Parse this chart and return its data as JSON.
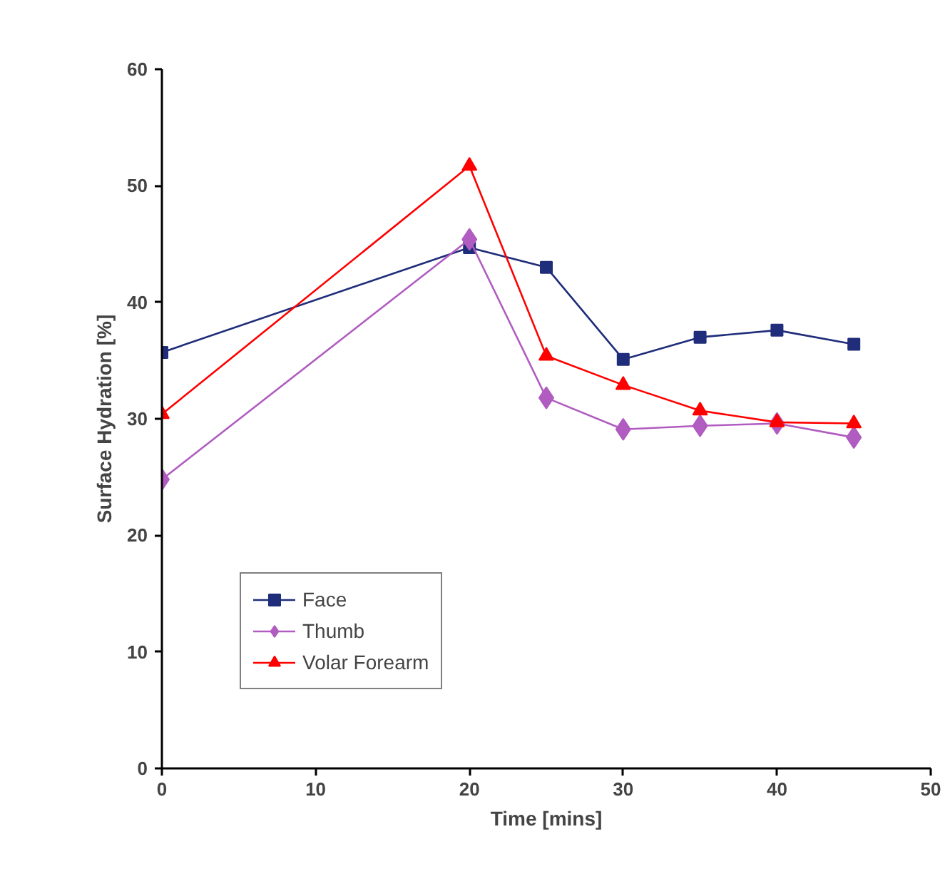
{
  "chart_data": {
    "type": "line",
    "xlabel": "Time [mins]",
    "ylabel": "Surface Hydration [%]",
    "x": [
      0,
      20,
      25,
      30,
      35,
      40,
      45
    ],
    "series": [
      {
        "name": "Face",
        "color": "#1f2d7a",
        "marker": "square",
        "values": [
          35.7,
          44.7,
          43.0,
          35.1,
          37.0,
          37.6,
          36.4
        ]
      },
      {
        "name": "Thumb",
        "color": "#b05cc0",
        "marker": "diamond",
        "values": [
          24.8,
          45.4,
          31.8,
          29.1,
          29.4,
          29.6,
          28.4
        ]
      },
      {
        "name": "Volar Forearm",
        "color": "#ff0000",
        "marker": "triangle",
        "values": [
          30.4,
          51.7,
          35.4,
          32.9,
          30.7,
          29.7,
          29.6
        ]
      }
    ],
    "xlim": [
      0,
      50
    ],
    "xticks": [
      0,
      10,
      20,
      30,
      40,
      50
    ],
    "ylim": [
      0,
      60
    ],
    "yticks": [
      0,
      10,
      20,
      30,
      40,
      50,
      60
    ],
    "grid": false,
    "legend": "bottom left"
  }
}
